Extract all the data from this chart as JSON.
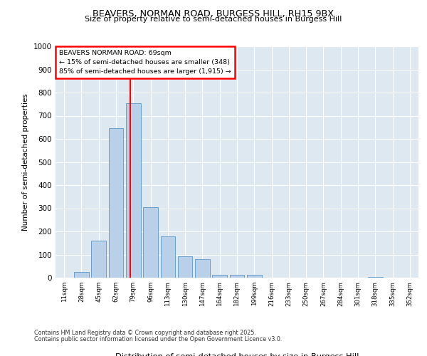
{
  "title1": "BEAVERS, NORMAN ROAD, BURGESS HILL, RH15 9BX",
  "title2": "Size of property relative to semi-detached houses in Burgess Hill",
  "xlabel": "Distribution of semi-detached houses by size in Burgess Hill",
  "ylabel": "Number of semi-detached properties",
  "bins": [
    "11sqm",
    "28sqm",
    "45sqm",
    "62sqm",
    "79sqm",
    "96sqm",
    "113sqm",
    "130sqm",
    "147sqm",
    "164sqm",
    "182sqm",
    "199sqm",
    "216sqm",
    "233sqm",
    "250sqm",
    "267sqm",
    "284sqm",
    "301sqm",
    "318sqm",
    "335sqm",
    "352sqm"
  ],
  "values": [
    0,
    25,
    160,
    645,
    755,
    305,
    180,
    93,
    80,
    12,
    13,
    12,
    0,
    0,
    0,
    0,
    0,
    0,
    2,
    0,
    0
  ],
  "bar_color": "#b8d0e8",
  "bar_edge_color": "#6aa0cc",
  "red_line_x": 3.82,
  "annotation_title": "BEAVERS NORMAN ROAD: 69sqm",
  "annotation_line1": "← 15% of semi-detached houses are smaller (348)",
  "annotation_line2": "85% of semi-detached houses are larger (1,915) →",
  "ylim": [
    0,
    1000
  ],
  "yticks": [
    0,
    100,
    200,
    300,
    400,
    500,
    600,
    700,
    800,
    900,
    1000
  ],
  "fig_bg_color": "#ffffff",
  "plot_bg_color": "#dde8f0",
  "grid_color": "#ffffff",
  "footer1": "Contains HM Land Registry data © Crown copyright and database right 2025.",
  "footer2": "Contains public sector information licensed under the Open Government Licence v3.0."
}
